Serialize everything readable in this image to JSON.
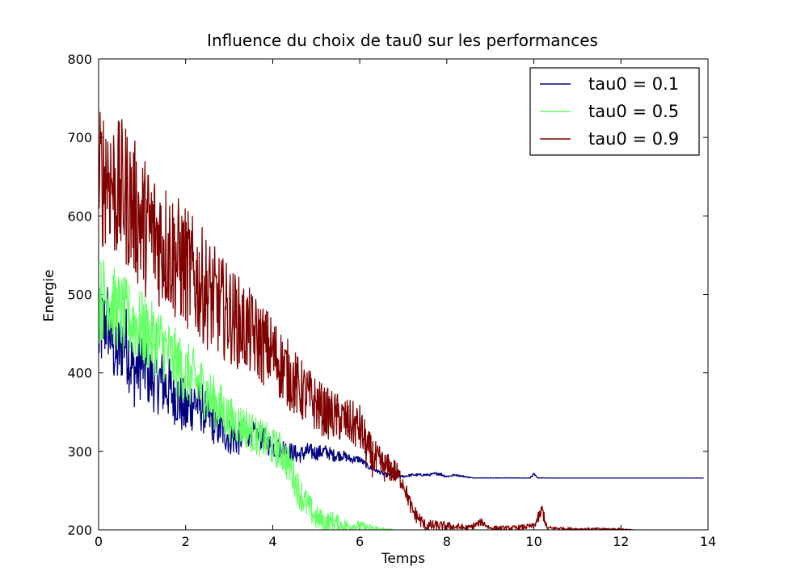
{
  "chart_data": {
    "type": "line",
    "title": "Influence du choix de tau0 sur les performances",
    "xlabel": "Temps",
    "ylabel": "Energie",
    "xlim": [
      0,
      14
    ],
    "ylim": [
      200,
      800
    ],
    "xticks": [
      "0",
      "2",
      "4",
      "6",
      "8",
      "10",
      "12",
      "14"
    ],
    "yticks": [
      "200",
      "300",
      "400",
      "500",
      "600",
      "700",
      "800"
    ],
    "legend_position": "top-right",
    "series": [
      {
        "name": "tau0 = 0.1",
        "color": "#000080",
        "x": [
          0,
          0.2,
          0.4,
          0.6,
          0.8,
          1.0,
          1.2,
          1.4,
          1.6,
          1.8,
          2.0,
          2.2,
          2.4,
          2.6,
          2.8,
          3.0,
          3.2,
          3.4,
          3.6,
          3.8,
          4.0,
          4.2,
          4.4,
          4.6,
          4.8,
          5.0,
          5.2,
          5.4,
          5.6,
          5.8,
          6.0,
          6.2,
          6.4,
          6.6,
          6.8,
          7.0,
          7.2,
          7.6,
          7.8,
          8.0,
          8.2,
          8.4,
          8.6,
          9.0,
          9.5,
          9.9,
          10.0,
          10.1,
          10.5,
          11.0,
          11.5,
          11.9,
          12.0,
          12.5,
          13.0,
          13.5,
          13.9
        ],
        "values": [
          445,
          470,
          420,
          445,
          400,
          415,
          395,
          390,
          380,
          370,
          350,
          365,
          355,
          340,
          330,
          320,
          315,
          325,
          320,
          315,
          305,
          305,
          300,
          295,
          300,
          298,
          300,
          295,
          295,
          290,
          290,
          280,
          275,
          270,
          268,
          268,
          270,
          270,
          272,
          268,
          270,
          268,
          266,
          266,
          266,
          266,
          270,
          266,
          266,
          266,
          266,
          266,
          266,
          266,
          266,
          266,
          266
        ],
        "samples_per_unit": 90,
        "noise": [
          95,
          95,
          90,
          90,
          85,
          85,
          80,
          80,
          75,
          70,
          70,
          65,
          60,
          55,
          50,
          45,
          40,
          35,
          30,
          30,
          25,
          25,
          22,
          20,
          20,
          18,
          16,
          15,
          12,
          10,
          8,
          6,
          5,
          5,
          4,
          3,
          3,
          3,
          4,
          3,
          2,
          2,
          1,
          1,
          1,
          1,
          4,
          1,
          0,
          0,
          0,
          0,
          0,
          0,
          0,
          0,
          0
        ],
        "noise_floor": 266
      },
      {
        "name": "tau0 = 0.5",
        "color": "#66ff66",
        "x": [
          0,
          0.2,
          0.4,
          0.6,
          0.8,
          1.0,
          1.2,
          1.4,
          1.6,
          1.8,
          2.0,
          2.2,
          2.4,
          2.6,
          2.8,
          3.0,
          3.2,
          3.4,
          3.6,
          3.8,
          4.0,
          4.2,
          4.4,
          4.6,
          4.8,
          5.0,
          5.2,
          5.4,
          5.6,
          5.8,
          6.0,
          6.2,
          6.4,
          6.6,
          6.8
        ],
        "values": [
          490,
          500,
          480,
          470,
          465,
          455,
          445,
          440,
          425,
          410,
          400,
          390,
          380,
          365,
          355,
          340,
          335,
          330,
          320,
          315,
          305,
          300,
          280,
          250,
          230,
          215,
          210,
          210,
          205,
          205,
          205,
          202,
          201,
          200,
          200
        ],
        "samples_per_unit": 90,
        "noise": [
          100,
          100,
          95,
          95,
          90,
          90,
          85,
          85,
          80,
          80,
          75,
          75,
          70,
          65,
          60,
          55,
          50,
          50,
          45,
          45,
          45,
          45,
          45,
          40,
          35,
          30,
          25,
          25,
          20,
          15,
          12,
          10,
          8,
          5,
          0
        ],
        "noise_floor": 200
      },
      {
        "name": "tau0 = 0.9",
        "color": "#800000",
        "x": [
          0,
          0.2,
          0.4,
          0.6,
          0.8,
          1.0,
          1.2,
          1.4,
          1.6,
          1.8,
          2.0,
          2.2,
          2.4,
          2.6,
          2.8,
          3.0,
          3.2,
          3.4,
          3.6,
          3.8,
          4.0,
          4.2,
          4.4,
          4.6,
          4.8,
          5.0,
          5.2,
          5.4,
          5.6,
          5.8,
          6.0,
          6.2,
          6.4,
          6.6,
          6.8,
          7.0,
          7.2,
          7.5,
          8.0,
          8.5,
          8.8,
          9.0,
          9.5,
          10.0,
          10.2,
          10.3,
          10.5,
          11.0,
          11.5,
          12.0,
          12.3
        ],
        "values": [
          640,
          660,
          630,
          630,
          610,
          590,
          580,
          570,
          560,
          545,
          535,
          520,
          510,
          495,
          485,
          475,
          465,
          455,
          445,
          435,
          425,
          410,
          395,
          380,
          370,
          360,
          350,
          345,
          340,
          335,
          330,
          300,
          285,
          280,
          275,
          260,
          225,
          205,
          205,
          202,
          210,
          202,
          202,
          205,
          225,
          202,
          202,
          201,
          201,
          201,
          200
        ],
        "samples_per_unit": 90,
        "noise": [
          170,
          170,
          170,
          170,
          165,
          165,
          160,
          160,
          155,
          150,
          145,
          140,
          135,
          130,
          120,
          115,
          110,
          105,
          100,
          95,
          90,
          85,
          80,
          75,
          70,
          65,
          60,
          60,
          55,
          55,
          55,
          50,
          45,
          35,
          30,
          20,
          20,
          15,
          10,
          8,
          8,
          6,
          6,
          6,
          20,
          6,
          4,
          3,
          3,
          2,
          0
        ],
        "noise_floor": 200
      }
    ]
  }
}
